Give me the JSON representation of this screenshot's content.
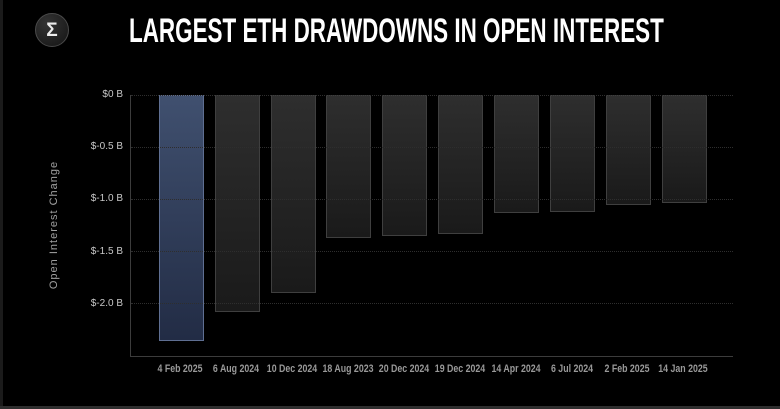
{
  "header": {
    "logo": {
      "glyph": "Σ"
    },
    "title": "LARGEST ETH DRAWDOWNS IN OPEN INTEREST"
  },
  "colors": {
    "background": "#000000",
    "title_color": "#ffffff",
    "axis_color": "#3c3c3c",
    "grid_color": "#2e2e2e",
    "ytick_color": "#c8c8c8",
    "xtick_color": "#999999",
    "axis_title_color": "#a0a0a0",
    "bar_fill_top": "#2e2e2e",
    "bar_fill_bottom": "#1a1a1a",
    "bar_border": "#3f3f3f",
    "highlight_fill_top": "#40506f",
    "highlight_fill_bottom": "#222c45",
    "highlight_border": "#5f6f92",
    "logo_ring": "#4a4a4a"
  },
  "chart_data": {
    "type": "bar",
    "title": "LARGEST ETH DRAWDOWNS IN OPEN INTEREST",
    "ylabel": "Open Interest Change",
    "xlabel": "",
    "categories": [
      "4 Feb 2025",
      "6 Aug 2024",
      "10 Dec 2024",
      "18 Aug 2023",
      "20 Dec 2024",
      "19 Dec 2024",
      "14 Apr 2024",
      "6 Jul 2024",
      "2 Feb 2025",
      "14 Jan 2025"
    ],
    "values": [
      -2.36,
      -2.08,
      -1.9,
      -1.37,
      -1.35,
      -1.33,
      -1.13,
      -1.12,
      -1.05,
      -1.03
    ],
    "unit": "$ billions",
    "highlighted_index": 0,
    "ylim": [
      -2.5,
      0
    ],
    "yticks": [
      0,
      -0.5,
      -1.0,
      -1.5,
      -2.0
    ],
    "ytick_labels": [
      "$0 B",
      "$-0.5 B",
      "$-1.0 B",
      "$-1.5 B",
      "$-2.0 B"
    ],
    "grid": "horizontal-dotted",
    "legend": "none"
  }
}
